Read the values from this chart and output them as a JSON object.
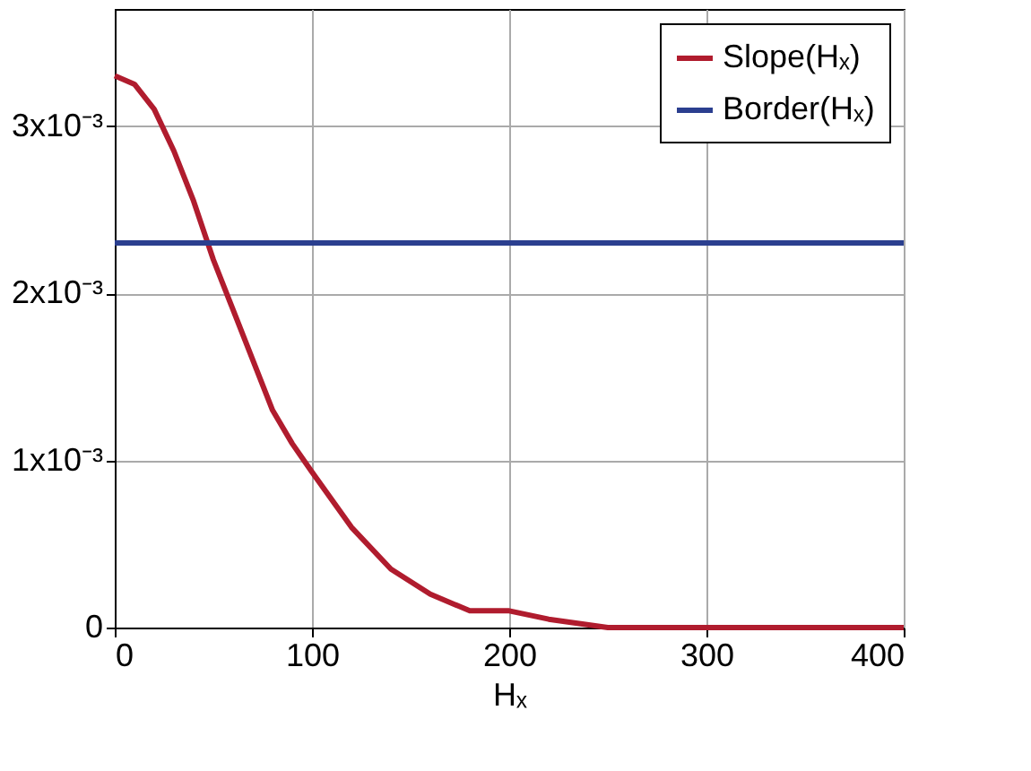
{
  "chart_data": {
    "type": "line",
    "xlabel": "Hₓ",
    "xlim": [
      0,
      400
    ],
    "xticks": [
      0,
      100,
      200,
      300,
      400
    ],
    "ylim": [
      0,
      0.0037
    ],
    "yticks": [
      0,
      {
        "value": 0.001,
        "label": "1x10⁻³"
      },
      {
        "value": 0.002,
        "label": "2x10⁻³"
      },
      {
        "value": 0.003,
        "label": "3x10⁻³"
      }
    ],
    "grid": true,
    "legend": "top right",
    "line_style": "solid",
    "series": [
      {
        "name": "Slope(Hₓ)",
        "color": "#b01c2e",
        "x": [
          0,
          10,
          20,
          30,
          40,
          50,
          60,
          70,
          80,
          90,
          100,
          120,
          140,
          160,
          180,
          200,
          220,
          250,
          270,
          300,
          350,
          400
        ],
        "values": [
          0.0033,
          0.00325,
          0.0031,
          0.00285,
          0.00255,
          0.0022,
          0.0019,
          0.0016,
          0.0013,
          0.0011,
          0.00093,
          0.0006,
          0.00035,
          0.0002,
          0.0001,
          0.0001,
          5e-05,
          0,
          0,
          0,
          0,
          0
        ]
      },
      {
        "name": "Border(Hₓ)",
        "color": "#2b3f8f",
        "x": [
          0,
          400
        ],
        "values": [
          0.0023,
          0.0023
        ]
      }
    ]
  }
}
